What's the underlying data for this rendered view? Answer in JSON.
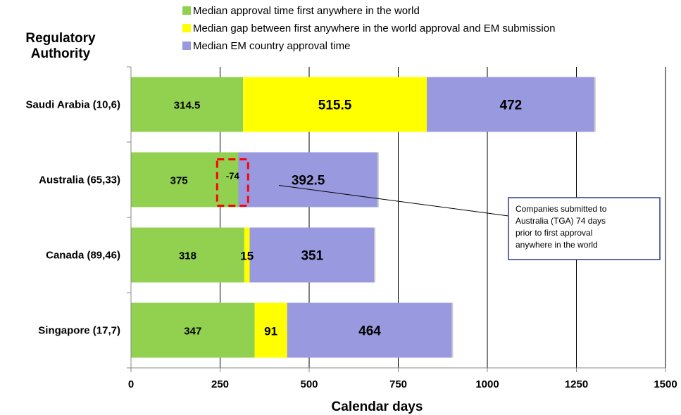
{
  "chart_data": {
    "type": "bar",
    "orientation": "horizontal",
    "stacked": true,
    "y_title_lines": [
      "Regulatory",
      "Authority"
    ],
    "xlabel": "Calendar days",
    "xlim": [
      0,
      1500
    ],
    "xticks": [
      0,
      250,
      500,
      750,
      1000,
      1250,
      1500
    ],
    "grid": "vertical",
    "legend_position": "top",
    "categories": [
      "Saudi Arabia (10,6)",
      "Australia (65,33)",
      "Canada (89,46)",
      "Singapore (17,7)"
    ],
    "series": [
      {
        "name": "Median approval time first anywhere in the world",
        "color": "#92d050",
        "values": [
          314.5,
          375,
          318,
          347
        ],
        "labels": [
          "314.5",
          "375",
          "318",
          "347"
        ]
      },
      {
        "name": "Median gap between first anywhere in the world approval and EM submission",
        "color": "#ffff00",
        "values": [
          515.5,
          -74,
          15,
          91
        ],
        "labels": [
          "515.5",
          "-74",
          "15",
          "91"
        ]
      },
      {
        "name": "Median EM country approval time",
        "color": "#9999e0",
        "values": [
          472,
          392.5,
          351,
          464
        ],
        "labels": [
          "472",
          "392.5",
          "351",
          "464"
        ]
      }
    ],
    "annotation": {
      "lines": [
        "Companies submitted to",
        "Australia (TGA) 74 days",
        "prior to first approval",
        "anywhere in the world"
      ],
      "target_category": "Australia (65,33)"
    }
  }
}
